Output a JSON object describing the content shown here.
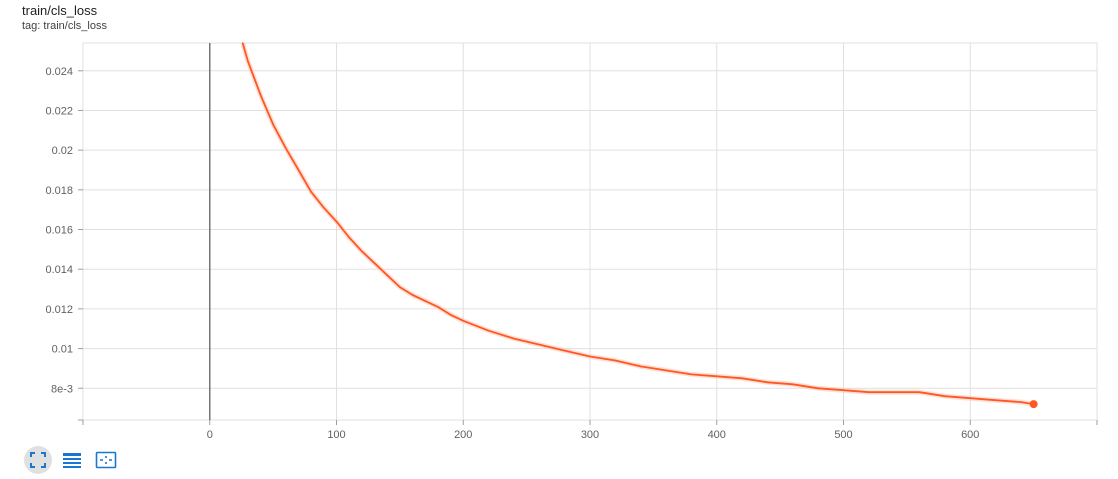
{
  "card": {
    "title": "train/cls_loss",
    "tag": "tag: train/cls_loss"
  },
  "toolbar": {
    "buttons": [
      {
        "icon": "fit-domain-icon"
      },
      {
        "icon": "data-table-icon"
      },
      {
        "icon": "toggle-log-scale-icon"
      }
    ]
  },
  "colors": {
    "line": "#ff5722",
    "line_raw": "#ffccbc",
    "grid": "#e0e0e0",
    "axis": "#9e9e9e",
    "toolbar_icon": "#1976d2"
  },
  "chart_data": {
    "type": "line",
    "title": "train/cls_loss",
    "xlabel": "",
    "ylabel": "",
    "xlim": [
      -100,
      700
    ],
    "ylim": [
      0.0064,
      0.0254
    ],
    "grid": true,
    "x_ticks": [
      0,
      100,
      200,
      300,
      400,
      500,
      600
    ],
    "x_tick_labels": [
      "0",
      "100",
      "200",
      "300",
      "400",
      "500",
      "600"
    ],
    "y_ticks": [
      0.008,
      0.01,
      0.012,
      0.014,
      0.016,
      0.018,
      0.02,
      0.022,
      0.024
    ],
    "y_tick_labels": [
      "8e-3",
      "0.01",
      "0.012",
      "0.014",
      "0.016",
      "0.018",
      "0.02",
      "0.022",
      "0.024"
    ],
    "series": [
      {
        "x": [
          26,
          30,
          40,
          50,
          60,
          70,
          80,
          90,
          100,
          110,
          120,
          130,
          140,
          150,
          160,
          170,
          180,
          190,
          200,
          220,
          240,
          260,
          280,
          300,
          320,
          340,
          360,
          380,
          400,
          420,
          440,
          460,
          480,
          500,
          520,
          540,
          560,
          580,
          600,
          620,
          640,
          650
        ],
        "y": [
          0.0254,
          0.0245,
          0.0228,
          0.0213,
          0.0201,
          0.019,
          0.0179,
          0.0171,
          0.0164,
          0.0156,
          0.0149,
          0.0143,
          0.0137,
          0.0131,
          0.0127,
          0.0124,
          0.0121,
          0.0117,
          0.0114,
          0.0109,
          0.0105,
          0.0102,
          0.0099,
          0.0096,
          0.0094,
          0.0091,
          0.0089,
          0.0087,
          0.0086,
          0.0085,
          0.0083,
          0.0082,
          0.008,
          0.0079,
          0.0078,
          0.0078,
          0.0078,
          0.0076,
          0.0075,
          0.0074,
          0.0073,
          0.0072
        ]
      }
    ]
  }
}
